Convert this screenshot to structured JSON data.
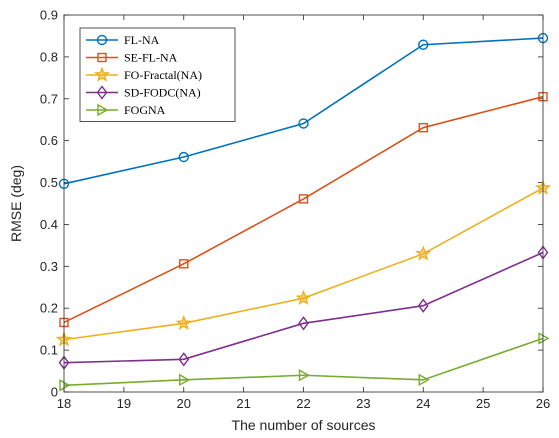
{
  "chart_data": {
    "type": "line",
    "xlabel": "The number of sources",
    "ylabel": "RMSE (deg)",
    "xlim": [
      18,
      26
    ],
    "ylim": [
      0,
      0.9
    ],
    "xticks": [
      "18",
      "19",
      "20",
      "21",
      "22",
      "23",
      "24",
      "25",
      "26"
    ],
    "yticks": [
      "0",
      "0.1",
      "0.2",
      "0.3",
      "0.4",
      "0.5",
      "0.6",
      "0.7",
      "0.8",
      "0.9"
    ],
    "grid": false,
    "legend_position": "top-left",
    "x": [
      18,
      20,
      22,
      24,
      26
    ],
    "series": [
      {
        "name": "FL-NA",
        "color": "#0072bd",
        "marker": "circle",
        "values": [
          0.497,
          0.561,
          0.641,
          0.829,
          0.845
        ]
      },
      {
        "name": "SE-FL-NA",
        "color": "#d95319",
        "marker": "square",
        "values": [
          0.166,
          0.306,
          0.461,
          0.631,
          0.705
        ]
      },
      {
        "name": "FO-Fractal(NA)",
        "color": "#edb120",
        "marker": "star",
        "values": [
          0.125,
          0.164,
          0.224,
          0.33,
          0.487
        ]
      },
      {
        "name": "SD-FODC(NA)",
        "color": "#7e2f8e",
        "marker": "diamond",
        "values": [
          0.07,
          0.078,
          0.164,
          0.206,
          0.333
        ]
      },
      {
        "name": "FOGNA",
        "color": "#77ac30",
        "marker": "triangle-right",
        "values": [
          0.016,
          0.029,
          0.04,
          0.029,
          0.128
        ]
      }
    ]
  }
}
